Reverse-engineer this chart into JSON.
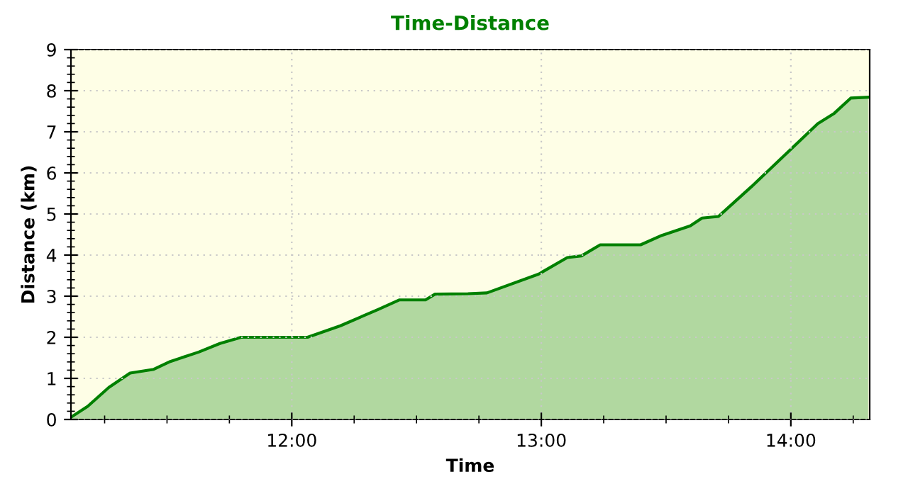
{
  "chart_data": {
    "type": "area",
    "title": "Time-Distance",
    "xlabel": "Time",
    "ylabel": "Distance (km)",
    "x": [
      11.119,
      11.182,
      11.267,
      11.352,
      11.447,
      11.513,
      11.627,
      11.712,
      11.797,
      12.063,
      12.195,
      12.347,
      12.432,
      12.536,
      12.574,
      12.706,
      12.782,
      12.99,
      13.104,
      13.161,
      13.236,
      13.398,
      13.483,
      13.597,
      13.644,
      13.71,
      13.843,
      13.937,
      14.108,
      14.174,
      14.24,
      14.31
    ],
    "series": [
      {
        "color": "#008000",
        "values": [
          0.07,
          0.32,
          0.78,
          1.13,
          1.22,
          1.41,
          1.64,
          1.85,
          2.0,
          2.0,
          2.28,
          2.68,
          2.91,
          2.91,
          3.05,
          3.06,
          3.08,
          3.54,
          3.94,
          3.98,
          4.25,
          4.25,
          4.48,
          4.71,
          4.9,
          4.94,
          5.67,
          6.21,
          7.2,
          7.45,
          7.82,
          7.84
        ]
      }
    ],
    "xlim": [
      11.115,
      14.316
    ],
    "ylim": [
      0,
      9
    ],
    "xticks": [
      {
        "value": 12,
        "label": "12:00"
      },
      {
        "value": 13,
        "label": "13:00"
      },
      {
        "value": 14,
        "label": "14:00"
      }
    ],
    "yticks": [
      0,
      1,
      2,
      3,
      4,
      5,
      6,
      7,
      8,
      9
    ],
    "grid": true,
    "legend": false
  }
}
